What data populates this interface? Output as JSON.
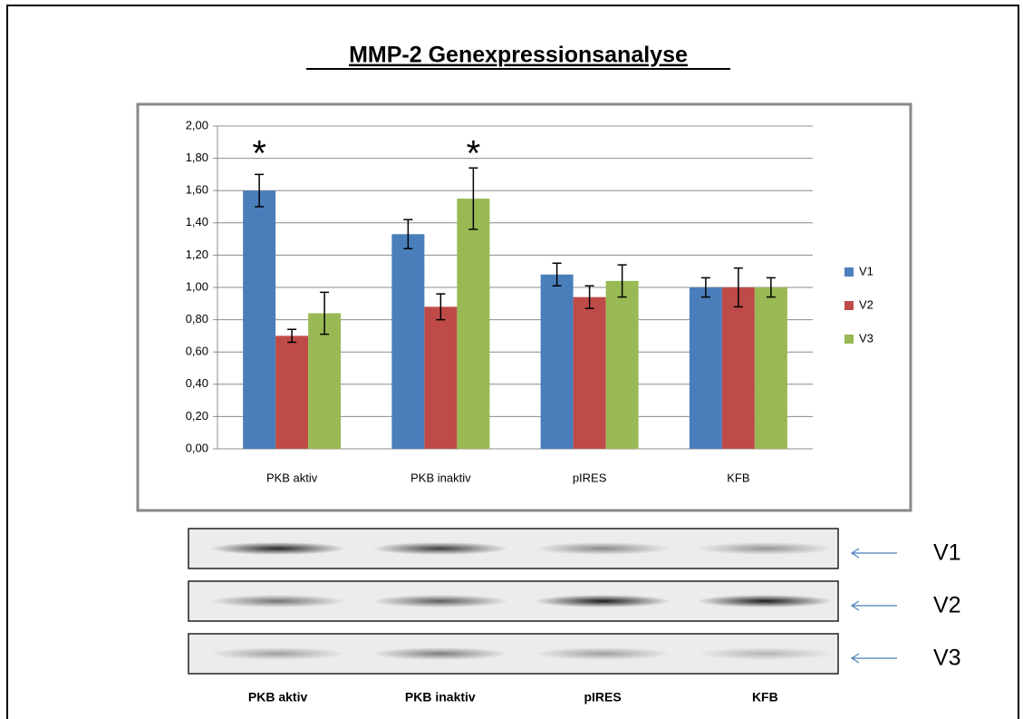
{
  "chart_data": {
    "type": "bar",
    "title": "MMP-2 Genexpressionsanalyse",
    "categories": [
      "PKB aktiv",
      "PKB inaktiv",
      "pIRES",
      "KFB"
    ],
    "series": [
      {
        "name": "V1",
        "color": "#4a7ebb",
        "values": [
          1.6,
          1.33,
          1.08,
          1.0
        ],
        "errors": [
          0.1,
          0.09,
          0.07,
          0.06
        ]
      },
      {
        "name": "V2",
        "color": "#be4b48",
        "values": [
          0.7,
          0.88,
          0.94,
          1.0
        ],
        "errors": [
          0.04,
          0.08,
          0.07,
          0.12
        ]
      },
      {
        "name": "V3",
        "color": "#98b954",
        "values": [
          0.84,
          1.55,
          1.04,
          1.0
        ],
        "errors": [
          0.13,
          0.19,
          0.1,
          0.06
        ]
      }
    ],
    "annotations": [
      {
        "text": "*",
        "category": "PKB aktiv",
        "series": "V1"
      },
      {
        "text": "*",
        "category": "PKB inaktiv",
        "series": "V3"
      }
    ],
    "ylim": [
      0,
      2
    ],
    "yticks": [
      {
        "value": 0,
        "label": "0,00"
      },
      {
        "value": 0.2,
        "label": "0,20"
      },
      {
        "value": 0.4,
        "label": "0,40"
      },
      {
        "value": 0.6,
        "label": "0,60"
      },
      {
        "value": 0.8,
        "label": "0,80"
      },
      {
        "value": 1,
        "label": "1,00"
      },
      {
        "value": 1.2,
        "label": "1,20"
      },
      {
        "value": 1.4,
        "label": "1,40"
      },
      {
        "value": 1.6,
        "label": "1,60"
      },
      {
        "value": 1.8,
        "label": "1,80"
      },
      {
        "value": 2,
        "label": "2,00"
      }
    ],
    "grid": true,
    "legend": "right"
  },
  "blot": {
    "rows": [
      "V1",
      "V2",
      "V3"
    ],
    "lanes": [
      "PKB aktiv",
      "PKB inaktiv",
      "pIRES",
      "KFB"
    ]
  }
}
